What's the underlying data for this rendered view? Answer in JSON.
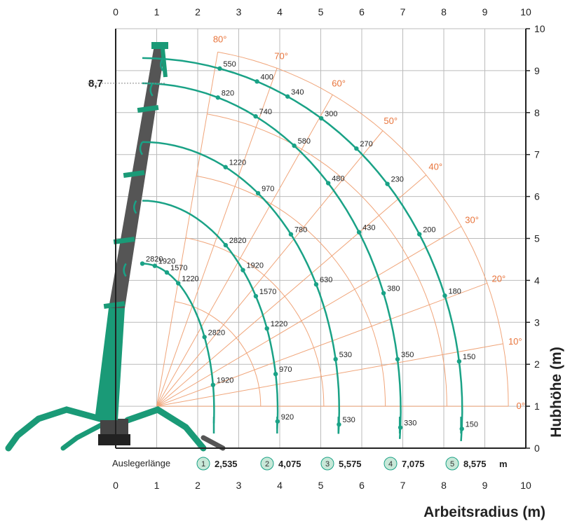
{
  "x_axis": {
    "title": "Arbeitsradius (m)",
    "ticks": [
      "0",
      "1",
      "2",
      "3",
      "4",
      "5",
      "6",
      "7",
      "8",
      "9",
      "10"
    ]
  },
  "y_axis": {
    "title": "Hubhöhe (m)",
    "ticks": [
      "0",
      "1",
      "2",
      "3",
      "4",
      "5",
      "6",
      "7",
      "8",
      "9",
      "10"
    ]
  },
  "max_height_label": "8,7",
  "angles": [
    "0°",
    "10°",
    "20°",
    "30°",
    "40°",
    "50°",
    "60°",
    "70°",
    "80°"
  ],
  "legend": {
    "label": "Auslegerlänge",
    "unit": "m",
    "items": [
      {
        "num": "1",
        "length": "2,535"
      },
      {
        "num": "2",
        "length": "4,075"
      },
      {
        "num": "3",
        "length": "5,575"
      },
      {
        "num": "4",
        "length": "7,075"
      },
      {
        "num": "5",
        "length": "8,575"
      }
    ]
  },
  "curves": [
    {
      "radius_m": 2.15,
      "loads": [
        {
          "angle": 10,
          "label": "1920"
        },
        {
          "angle": 30,
          "label": "2820"
        },
        {
          "angle": 60,
          "label": "1220"
        },
        {
          "angle": 70,
          "label": "1570"
        },
        {
          "angle": 80,
          "label": "1920"
        },
        {
          "angle": 90,
          "label": "2820"
        }
      ]
    },
    {
      "radius_m": 3.7,
      "loads": [
        {
          "angle": -3,
          "label": "920"
        },
        {
          "angle": 10,
          "label": "970"
        },
        {
          "angle": 23,
          "label": "1220"
        },
        {
          "angle": 33,
          "label": "1570"
        },
        {
          "angle": 42,
          "label": "1920"
        },
        {
          "angle": 52,
          "label": "2820"
        }
      ]
    },
    {
      "radius_m": 5.2,
      "loads": [
        {
          "angle": -3,
          "label": "530"
        },
        {
          "angle": 11,
          "label": "530"
        },
        {
          "angle": 28,
          "label": "630"
        },
        {
          "angle": 41,
          "label": "780"
        },
        {
          "angle": 54,
          "label": "970"
        },
        {
          "angle": 65,
          "label": "1220"
        }
      ]
    },
    {
      "radius_m": 6.7,
      "loads": [
        {
          "angle": -3,
          "label": "330"
        },
        {
          "angle": 9,
          "label": "350"
        },
        {
          "angle": 21,
          "label": "380"
        },
        {
          "angle": 33,
          "label": "430"
        },
        {
          "angle": 44,
          "label": "480"
        },
        {
          "angle": 54,
          "label": "580"
        },
        {
          "angle": 64,
          "label": "740"
        },
        {
          "angle": 73,
          "label": "820"
        }
      ]
    },
    {
      "radius_m": 8.2,
      "loads": [
        {
          "angle": -3,
          "label": "150"
        },
        {
          "angle": 8,
          "label": "150"
        },
        {
          "angle": 19,
          "label": "180"
        },
        {
          "angle": 30,
          "label": "200"
        },
        {
          "angle": 40,
          "label": "230"
        },
        {
          "angle": 48,
          "label": "270"
        },
        {
          "angle": 56,
          "label": "300"
        },
        {
          "angle": 63,
          "label": "340"
        },
        {
          "angle": 69,
          "label": "400"
        },
        {
          "angle": 76,
          "label": "550"
        }
      ]
    }
  ],
  "colors": {
    "curve": "#1aa286",
    "angle_lines": "#f0a57a",
    "angle_text": "#e8743b",
    "crane": "#1a9a77",
    "boom": "#555555",
    "legend_fill": "#c8e8d8"
  }
}
